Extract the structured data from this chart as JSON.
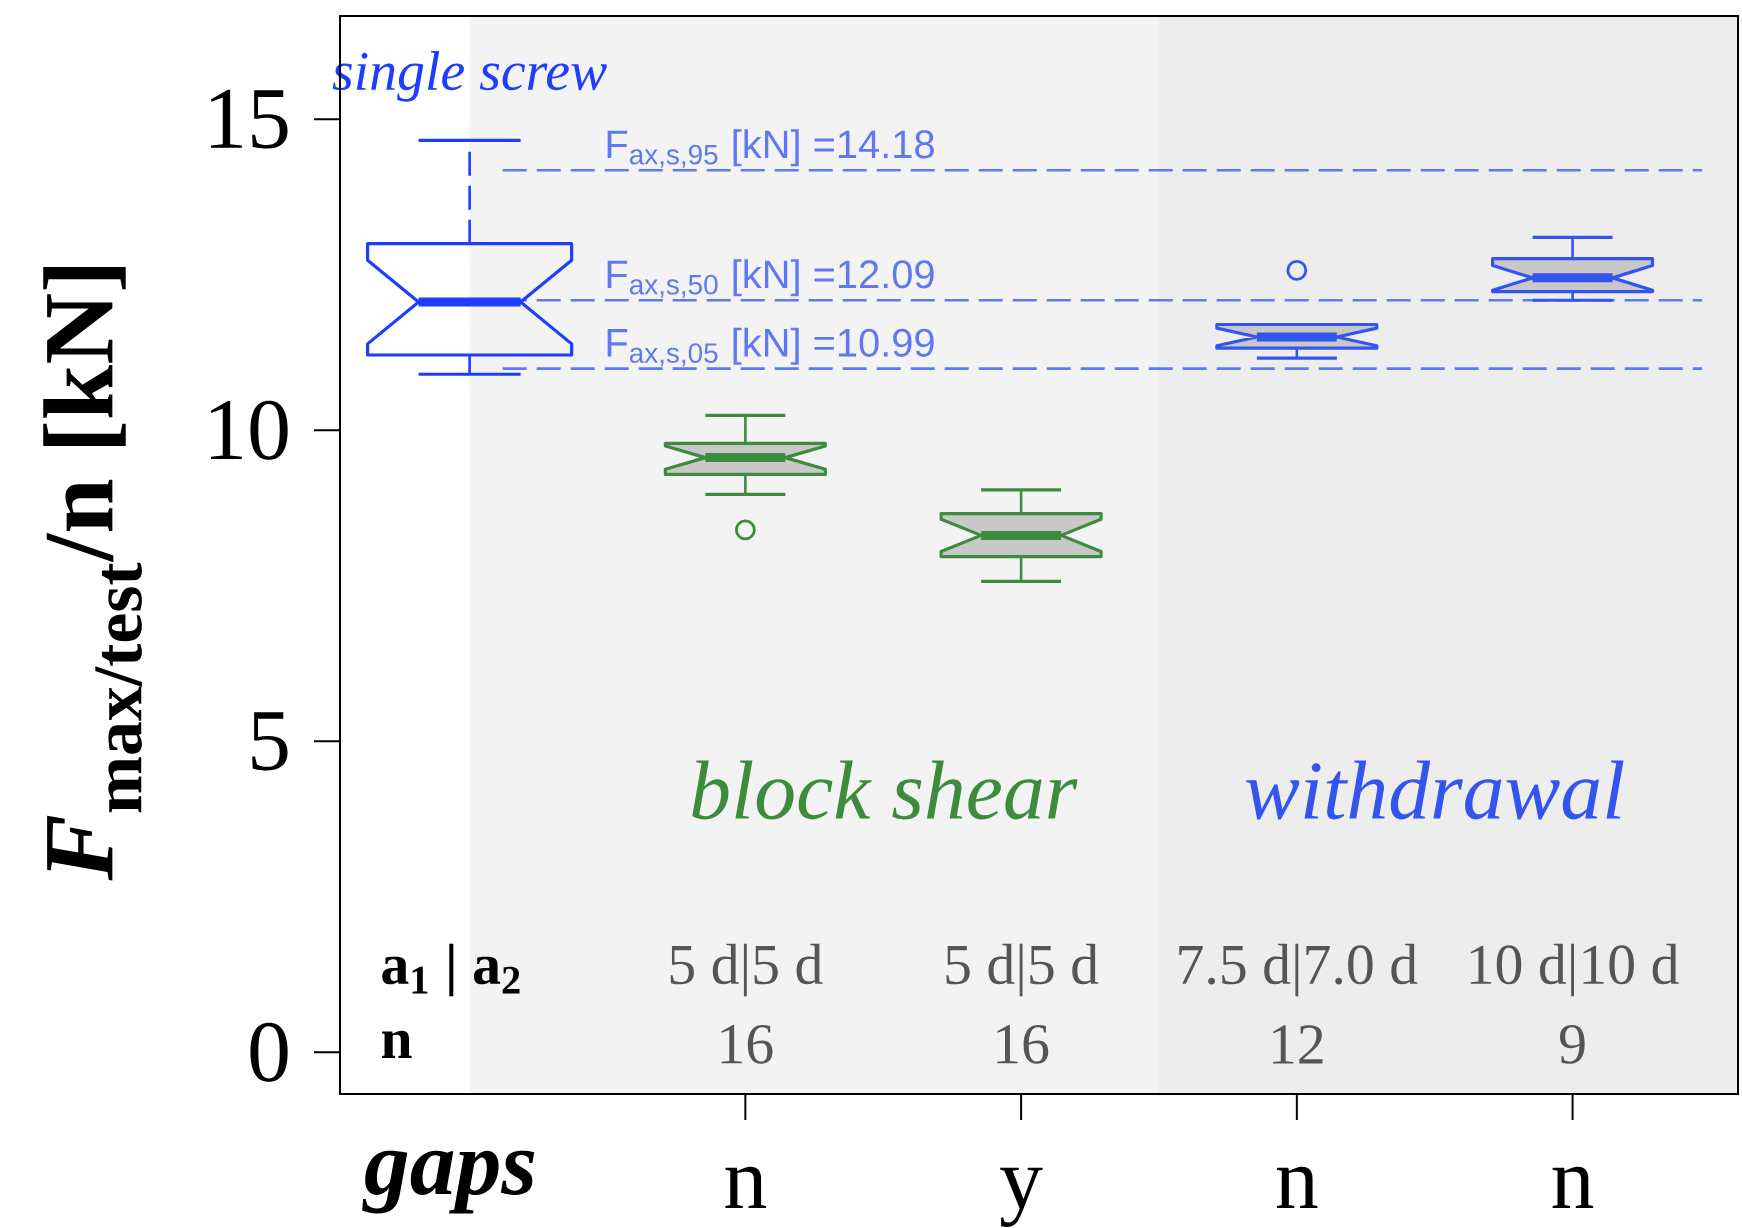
{
  "chart_data": {
    "type": "box",
    "ylabel": "*F*$_{max/test}$/n [kN]",
    "xlabel": "gaps",
    "categories": [
      null,
      "n",
      "y",
      "n",
      "n"
    ],
    "ylim": [
      -0.67,
      16.66
    ],
    "yticks": [
      0,
      5,
      10,
      15
    ],
    "series": [
      {
        "name": "single screw",
        "color": "#1f3dff",
        "line_style": "dashed",
        "boxes": [
          {
            "low": 10.9,
            "q1": 11.21,
            "median": 12.06,
            "q3": 13.0,
            "high": 14.66
          },
          null,
          null,
          null,
          null
        ]
      },
      {
        "name": "block shear",
        "color": "#3d8b3d",
        "boxes": [
          null,
          {
            "low": 8.97,
            "q1": 9.29,
            "median": 9.56,
            "q3": 9.79,
            "high": 10.24,
            "outliers": [
              8.4
            ]
          },
          {
            "low": 7.57,
            "q1": 7.97,
            "median": 8.31,
            "q3": 8.66,
            "high": 9.04
          },
          null,
          null
        ]
      },
      {
        "name": "withdrawal",
        "color": "#3355ee",
        "boxes": [
          null,
          null,
          null,
          {
            "low": 11.16,
            "q1": 11.32,
            "median": 11.5,
            "q3": 11.7,
            "high": 11.7,
            "outliers": [
              12.57
            ]
          },
          {
            "low": 12.09,
            "q1": 12.23,
            "median": 12.45,
            "q3": 12.76,
            "high": 13.1
          }
        ]
      }
    ],
    "ref_lines": [
      {
        "axis": "y",
        "value": 14.18,
        "label": "F$_{ax,s,95}$ [kN] =14.18",
        "color": "#6079f2",
        "line_style": "dashed"
      },
      {
        "axis": "y",
        "value": 12.09,
        "label": "F$_{ax,s,50}$ [kN] =12.09",
        "color": "#6079f2",
        "line_style": "dashed"
      },
      {
        "axis": "y",
        "value": 10.99,
        "label": "F$_{ax,s,05}$ [kN] =10.99",
        "color": "#6079f2",
        "line_style": "dashed"
      }
    ],
    "annotations": [
      "a$_{1}$ | a$_{2}$",
      "5 d|5 d",
      "5 d|5 d",
      "7.5 d|7.0 d",
      "10 d|10 d",
      "n",
      "16",
      "16",
      "12",
      "9"
    ]
  }
}
